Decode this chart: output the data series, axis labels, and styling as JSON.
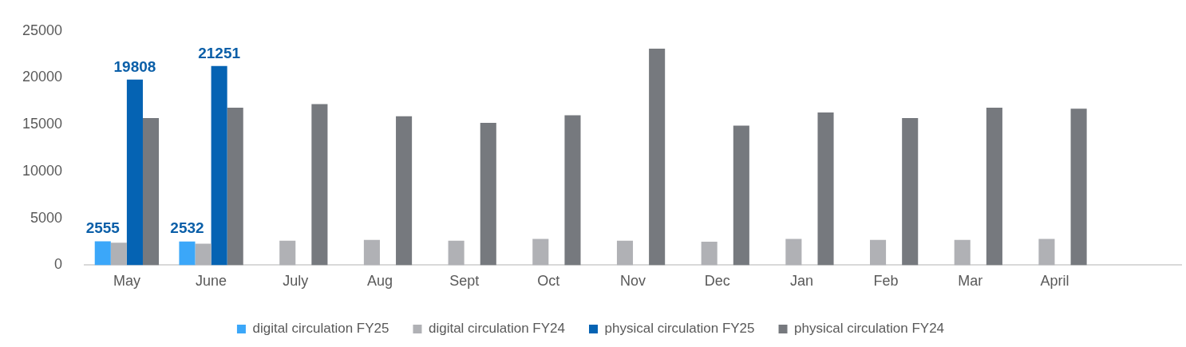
{
  "chart_data": {
    "type": "bar",
    "categories": [
      "May",
      "June",
      "July",
      "Aug",
      "Sept",
      "Oct",
      "Nov",
      "Dec",
      "Jan",
      "Feb",
      "Mar",
      "April",
      null
    ],
    "series": [
      {
        "name": "digital circulation FY25",
        "color": "#3ba7f9",
        "values": [
          2555,
          2532,
          null,
          null,
          null,
          null,
          null,
          null,
          null,
          null,
          null,
          null,
          null
        ],
        "value_labels": [
          "2555",
          "2532",
          null,
          null,
          null,
          null,
          null,
          null,
          null,
          null,
          null,
          null,
          null
        ]
      },
      {
        "name": "digital circulation FY24",
        "color": "#b0b1b5",
        "values": [
          2400,
          2300,
          2600,
          2700,
          2600,
          2800,
          2600,
          2500,
          2800,
          2700,
          2700,
          2800,
          null
        ]
      },
      {
        "name": "physical circulation FY25",
        "color": "#0563b3",
        "values": [
          19808,
          21251,
          null,
          null,
          null,
          null,
          null,
          null,
          null,
          null,
          null,
          null,
          null
        ],
        "value_labels": [
          "19808",
          "21251",
          null,
          null,
          null,
          null,
          null,
          null,
          null,
          null,
          null,
          null,
          null
        ]
      },
      {
        "name": "physical circulation FY24",
        "color": "#76797e",
        "values": [
          15700,
          16800,
          17200,
          15900,
          15200,
          16000,
          23100,
          14900,
          16300,
          15700,
          16800,
          16700,
          null
        ]
      }
    ],
    "ylim": [
      0,
      25000
    ],
    "yticks": [
      0,
      5000,
      10000,
      15000,
      20000,
      25000
    ],
    "grid": false,
    "legend": "bottom"
  }
}
